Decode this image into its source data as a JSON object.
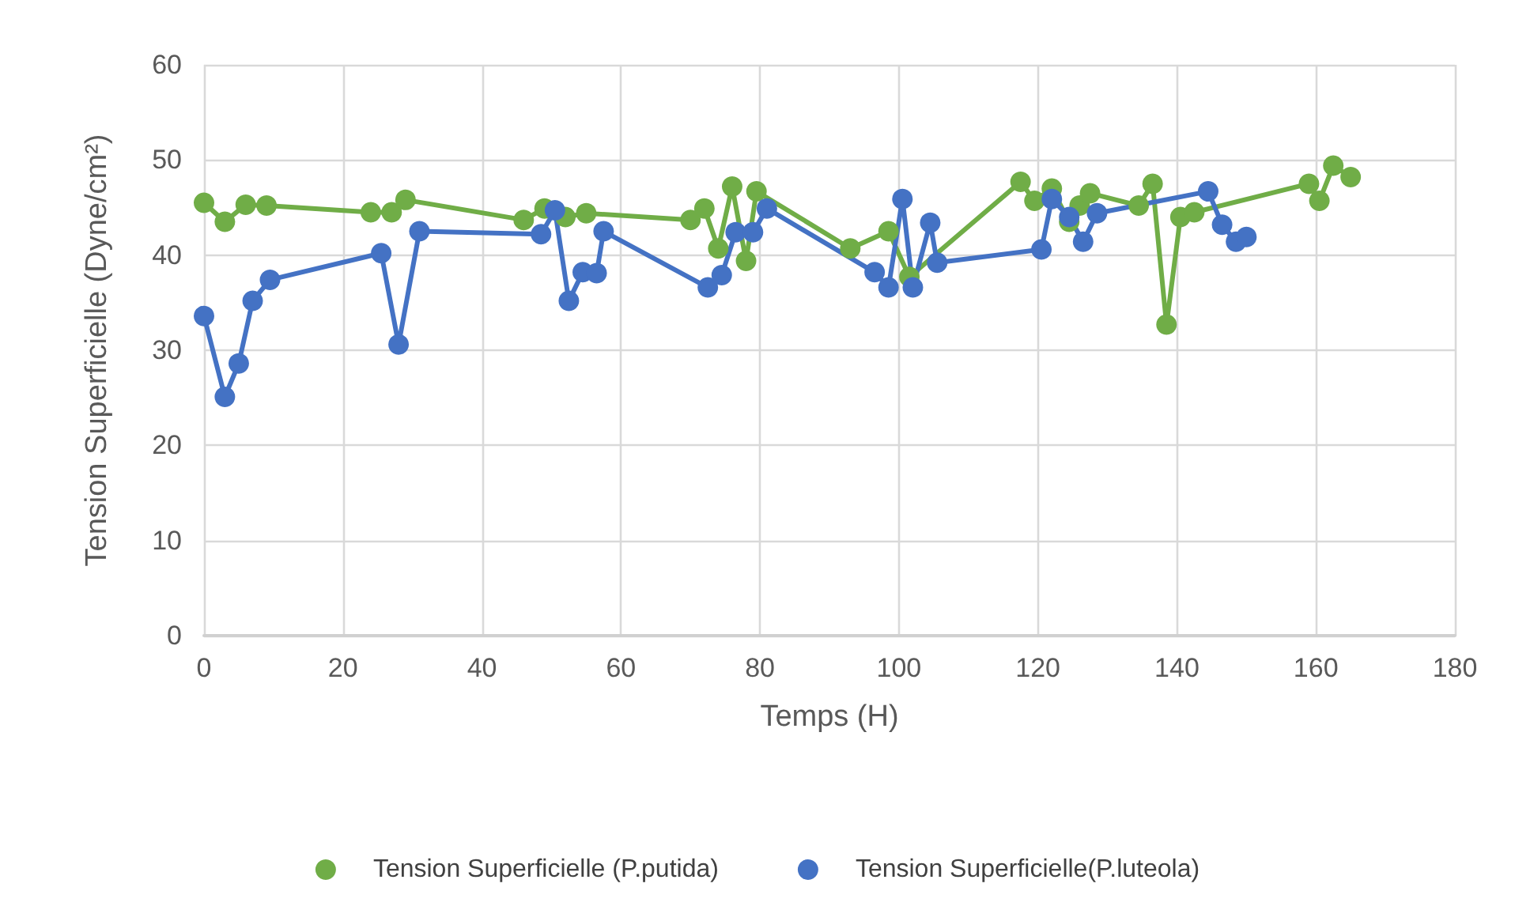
{
  "chart_data": {
    "type": "line",
    "xlabel": "Temps (H)",
    "ylabel": "Tension Superficielle (Dyne/cm²)",
    "xlim": [
      0,
      180
    ],
    "xticks": [
      0,
      20,
      40,
      60,
      80,
      100,
      120,
      140,
      160,
      180
    ],
    "ylim": [
      0,
      60
    ],
    "yticks": [
      0,
      10,
      20,
      30,
      40,
      50,
      60
    ],
    "grid": true,
    "legend": "bottom",
    "marker": "circle",
    "line_style": "solid",
    "series": [
      {
        "name": "Tension Superficielle (P.putida)",
        "color": "#70ad47",
        "x": [
          0,
          3,
          6,
          9,
          24,
          27,
          29,
          46,
          49,
          52,
          55,
          70,
          72,
          74,
          76,
          78,
          79.5,
          93,
          98.5,
          101.5,
          117.5,
          119.5,
          122,
          124.5,
          126,
          127.5,
          134.5,
          136.5,
          138.5,
          140.5,
          142.5,
          159,
          160.5,
          162.5,
          165
        ],
        "values": [
          45.5,
          43.5,
          45.3,
          45.2,
          44.5,
          44.5,
          45.8,
          43.7,
          44.9,
          44,
          44.4,
          43.7,
          44.9,
          40.7,
          47.2,
          39.4,
          46.7,
          40.7,
          42.5,
          37.7,
          47.7,
          45.7,
          47,
          43.5,
          45.2,
          46.5,
          45.2,
          47.5,
          32.7,
          44,
          44.5,
          47.5,
          45.7,
          49.4,
          48.2
        ]
      },
      {
        "name": "Tension Superficielle(P.luteola)",
        "color": "#4472c4",
        "x": [
          0,
          3,
          5,
          7,
          9.5,
          25.5,
          28,
          31,
          48.5,
          50.5,
          52.5,
          54.5,
          56.5,
          57.5,
          72.5,
          74.5,
          76.5,
          79,
          81,
          96.5,
          98.5,
          100.5,
          102,
          104.5,
          105.5,
          120.5,
          122,
          124.5,
          126.5,
          128.5,
          144.5,
          146.5,
          148.5,
          150
        ],
        "values": [
          33.6,
          25.1,
          28.6,
          35.2,
          37.4,
          40.2,
          30.6,
          42.5,
          42.2,
          44.7,
          35.2,
          38.2,
          38.1,
          42.5,
          36.6,
          37.9,
          42.4,
          42.4,
          44.9,
          38.2,
          36.6,
          45.9,
          36.6,
          43.4,
          39.2,
          40.6,
          45.9,
          44,
          41.4,
          44.4,
          46.7,
          43.2,
          41.4,
          41.9
        ]
      }
    ]
  }
}
